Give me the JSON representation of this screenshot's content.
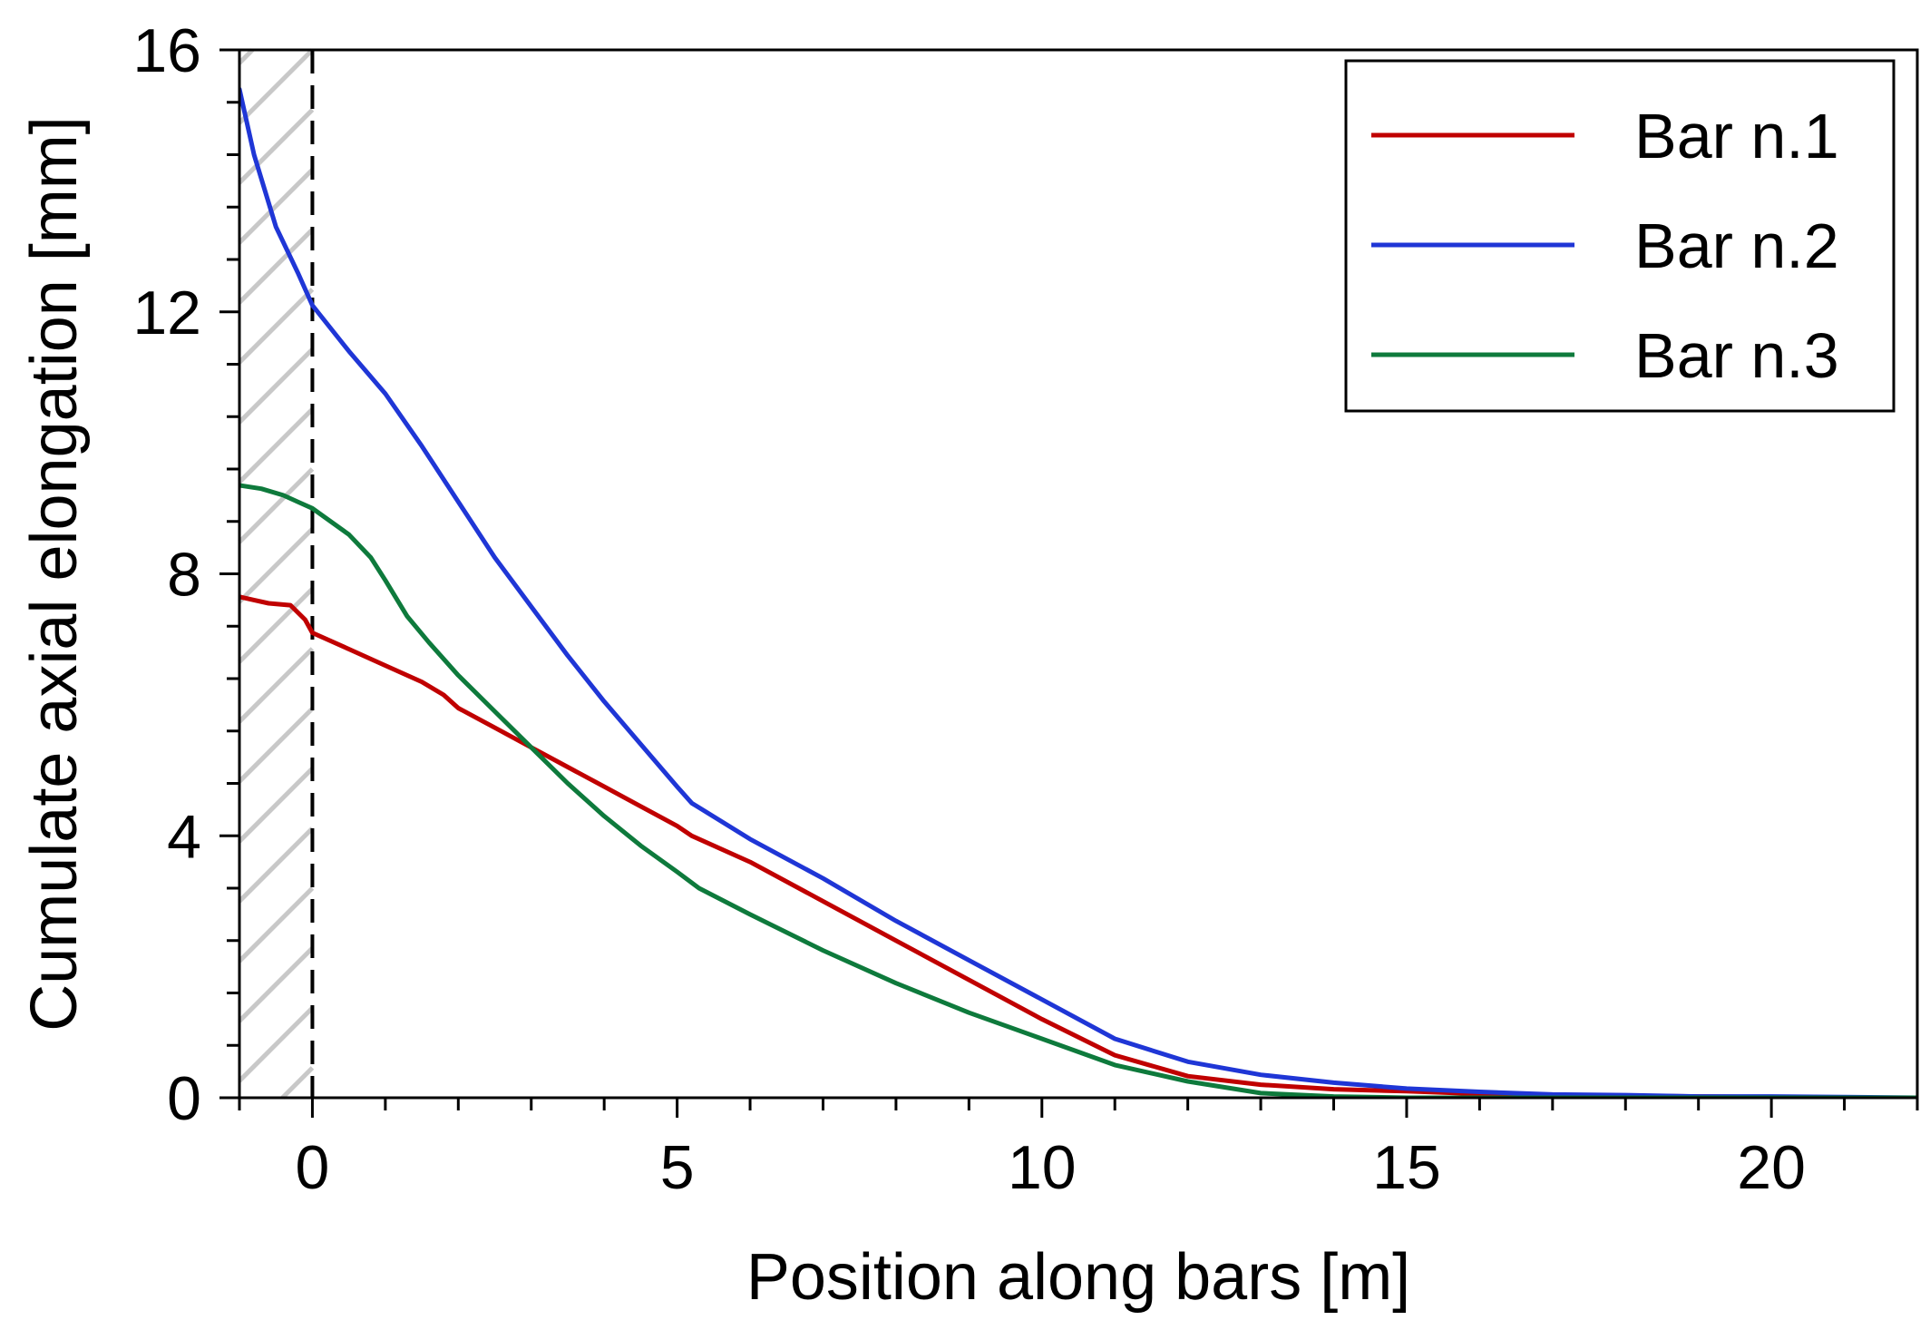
{
  "chart_data": {
    "type": "line",
    "title": "",
    "xlabel": "Position along bars [m]",
    "ylabel": "Cumulate axial elongation [mm]",
    "xlim": [
      -1,
      22
    ],
    "ylim": [
      0,
      16
    ],
    "xticks": [
      0,
      5,
      10,
      15,
      20
    ],
    "yticks": [
      0,
      4,
      8,
      12,
      16
    ],
    "x_minor_step": 1,
    "y_minor_step": 0.8,
    "grid": false,
    "legend_position": "top-right",
    "shaded_region": {
      "x_range": [
        -1,
        0
      ],
      "pattern": "diagonal-hatch"
    },
    "reference_line": {
      "x": 0,
      "style": "dashed"
    },
    "series": [
      {
        "name": "Bar n.1",
        "color": "#c00000",
        "x": [
          -1,
          -0.8,
          -0.6,
          -0.3,
          -0.1,
          0,
          0.5,
          1,
          1.5,
          1.8,
          2,
          2.5,
          3,
          3.5,
          4,
          4.5,
          5,
          5.2,
          6,
          7,
          8,
          9,
          10,
          11,
          12,
          13,
          14,
          15,
          16,
          17,
          18,
          19,
          20,
          21,
          22
        ],
        "y": [
          7.65,
          7.6,
          7.55,
          7.52,
          7.3,
          7.1,
          6.85,
          6.6,
          6.35,
          6.15,
          5.95,
          5.65,
          5.35,
          5.05,
          4.75,
          4.45,
          4.15,
          4.0,
          3.6,
          3.0,
          2.4,
          1.8,
          1.2,
          0.65,
          0.33,
          0.2,
          0.13,
          0.1,
          0.06,
          0.04,
          0.03,
          0.02,
          0.01,
          0.0,
          0.0
        ]
      },
      {
        "name": "Bar n.2",
        "color": "#1f36d6",
        "x": [
          -1,
          -0.8,
          -0.5,
          -0.2,
          0,
          0.5,
          1,
          1.5,
          2,
          2.5,
          3,
          3.5,
          4,
          4.5,
          5,
          5.2,
          6,
          7,
          8,
          9,
          10,
          11,
          12,
          13,
          14,
          15,
          16,
          17,
          18,
          19,
          20,
          21,
          22
        ],
        "y": [
          15.4,
          14.4,
          13.3,
          12.6,
          12.1,
          11.4,
          10.75,
          9.95,
          9.1,
          8.25,
          7.5,
          6.75,
          6.05,
          5.4,
          4.75,
          4.5,
          3.95,
          3.35,
          2.7,
          2.1,
          1.5,
          0.9,
          0.55,
          0.35,
          0.23,
          0.14,
          0.09,
          0.05,
          0.04,
          0.02,
          0.02,
          0.01,
          0.0
        ]
      },
      {
        "name": "Bar n.3",
        "color": "#0e7a3c",
        "x": [
          -1,
          -0.7,
          -0.4,
          -0.2,
          0,
          0.5,
          0.8,
          1,
          1.3,
          1.6,
          2,
          2.5,
          3,
          3.5,
          4,
          4.5,
          5,
          5.3,
          6,
          7,
          8,
          9,
          10,
          11,
          12,
          13,
          14,
          15,
          16,
          17,
          18,
          19,
          20,
          21,
          22
        ],
        "y": [
          9.35,
          9.3,
          9.2,
          9.1,
          9.0,
          8.6,
          8.25,
          7.9,
          7.35,
          6.95,
          6.45,
          5.9,
          5.35,
          4.8,
          4.3,
          3.85,
          3.45,
          3.2,
          2.8,
          2.25,
          1.75,
          1.3,
          0.9,
          0.5,
          0.25,
          0.07,
          0.02,
          0.0,
          0.0,
          0.0,
          0.0,
          0.0,
          0.0,
          0.0,
          0.0
        ]
      }
    ]
  }
}
